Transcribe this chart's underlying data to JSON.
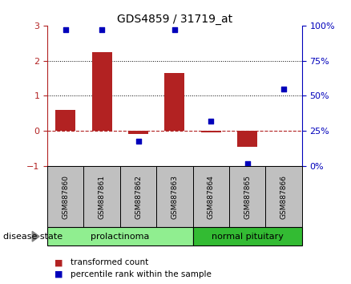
{
  "title": "GDS4859 / 31719_at",
  "samples": [
    "GSM887860",
    "GSM887861",
    "GSM887862",
    "GSM887863",
    "GSM887864",
    "GSM887865",
    "GSM887866"
  ],
  "transformed_count": [
    0.6,
    2.25,
    -0.08,
    1.65,
    -0.05,
    -0.45,
    0.0
  ],
  "percentile_rank": [
    97,
    97,
    18,
    97,
    32,
    2,
    55
  ],
  "ylim_left": [
    -1,
    3
  ],
  "ylim_right": [
    0,
    100
  ],
  "left_ticks": [
    -1,
    0,
    1,
    2,
    3
  ],
  "right_ticks": [
    0,
    25,
    50,
    75,
    100
  ],
  "right_tick_labels": [
    "0%",
    "25%",
    "50%",
    "75%",
    "100%"
  ],
  "bar_color": "#B22222",
  "dot_color": "#0000BB",
  "zero_line_color": "#B22222",
  "dotted_line_color": "#000000",
  "sample_bg_color": "#C0C0C0",
  "disease_state_label": "disease state",
  "legend_bar_label": "transformed count",
  "legend_dot_label": "percentile rank within the sample",
  "prolactinoma_color": "#90EE90",
  "normal_pituitary_color": "#33BB33"
}
